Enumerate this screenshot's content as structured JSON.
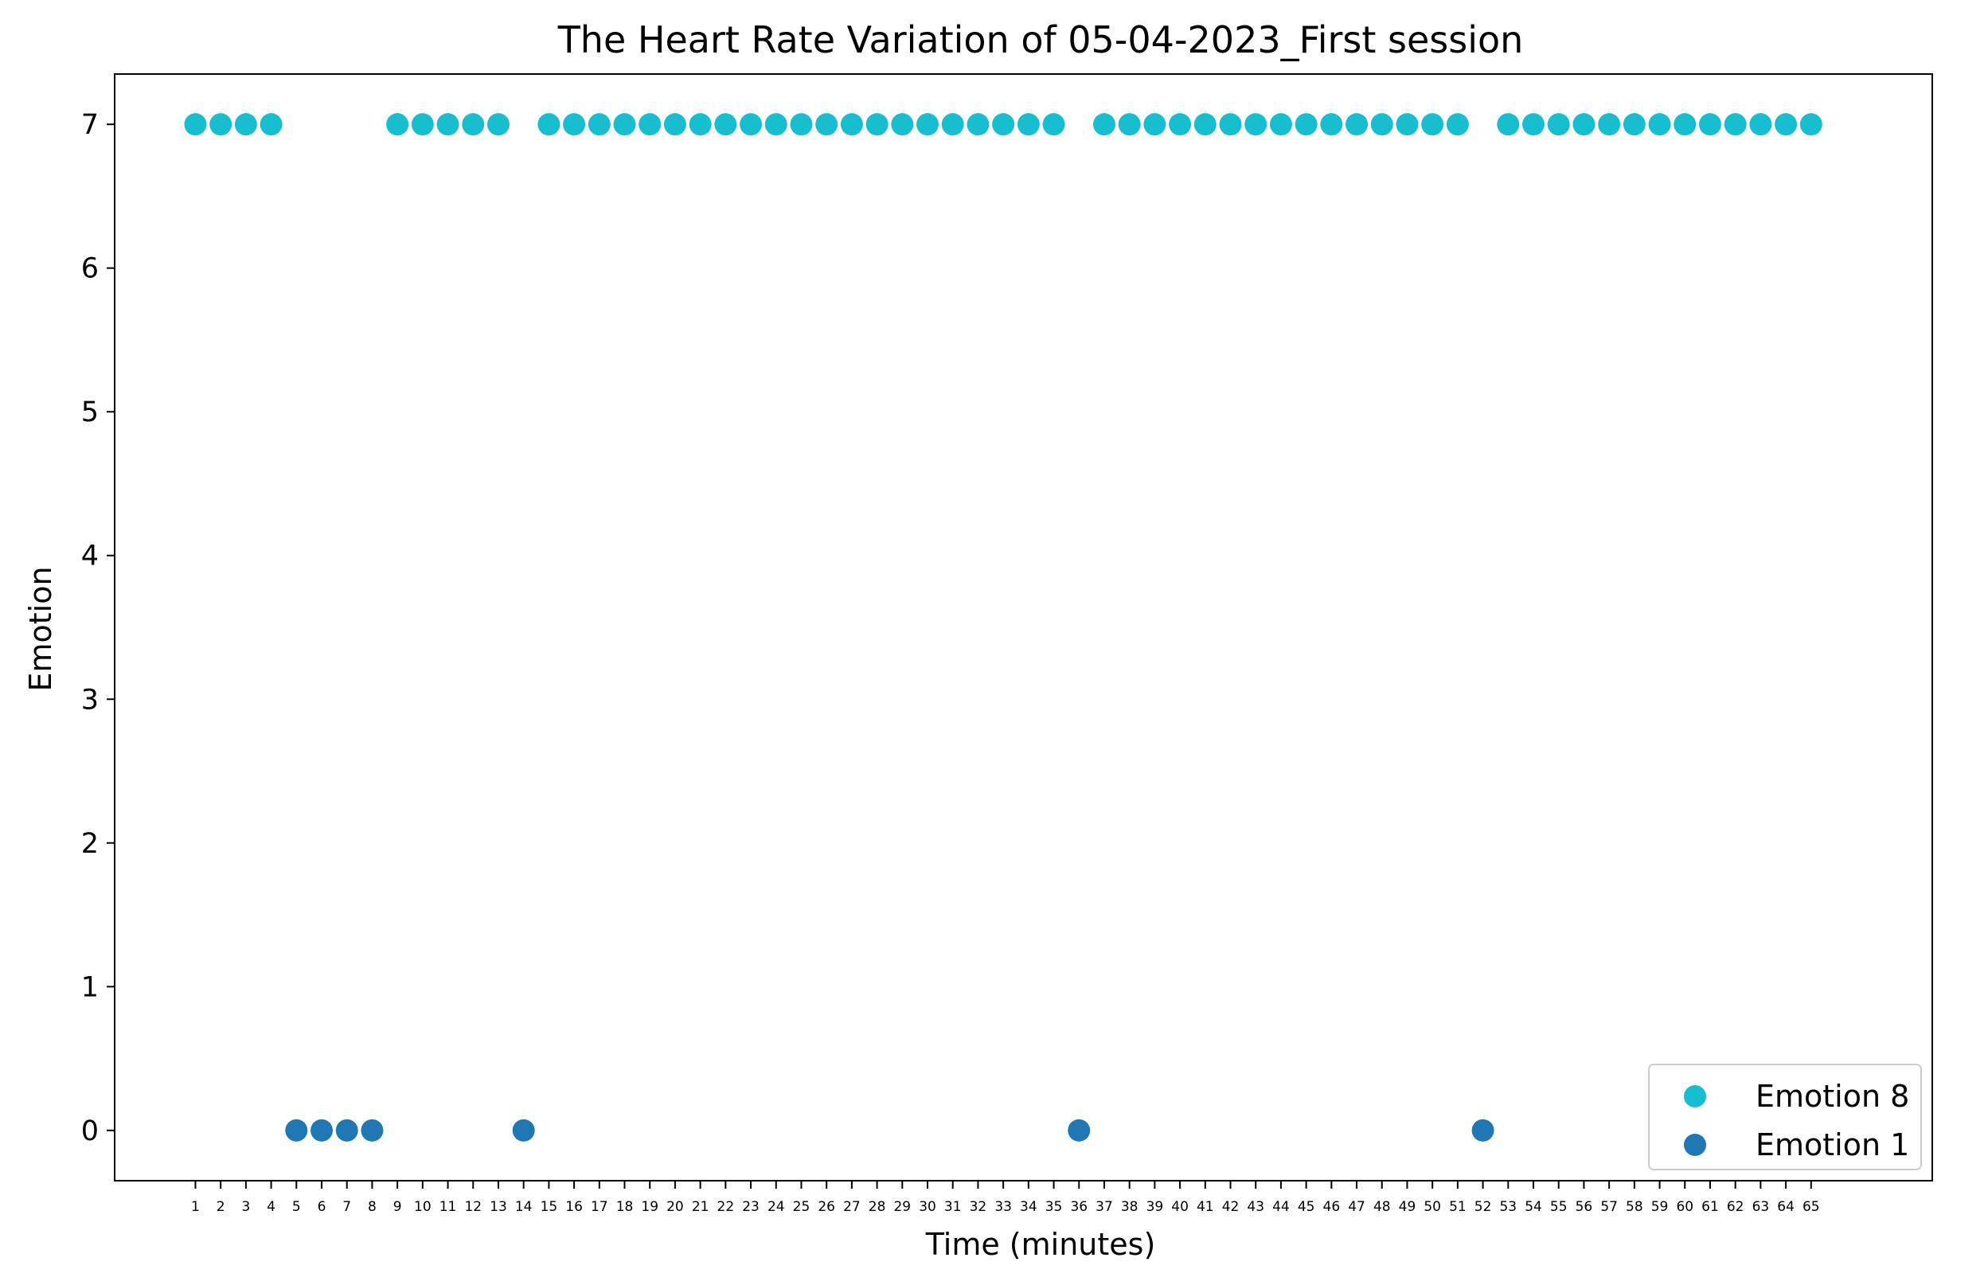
{
  "chart_data": {
    "type": "scatter",
    "title": "The Heart Rate Variation of 05-04-2023_First session",
    "xlabel": "Time (minutes)",
    "ylabel": "Emotion",
    "xlim": [
      -2.2,
      69.8
    ],
    "ylim": [
      -0.35,
      7.35
    ],
    "x_ticks": [
      1,
      2,
      3,
      4,
      5,
      6,
      7,
      8,
      9,
      10,
      11,
      12,
      13,
      14,
      15,
      16,
      17,
      18,
      19,
      20,
      21,
      22,
      23,
      24,
      25,
      26,
      27,
      28,
      29,
      30,
      31,
      32,
      33,
      34,
      35,
      36,
      37,
      38,
      39,
      40,
      41,
      42,
      43,
      44,
      45,
      46,
      47,
      48,
      49,
      50,
      51,
      52,
      53,
      54,
      55,
      56,
      57,
      58,
      59,
      60,
      61,
      62,
      63,
      64,
      65
    ],
    "y_ticks": [
      0,
      1,
      2,
      3,
      4,
      5,
      6,
      7
    ],
    "grid": false,
    "legend_position": "lower right",
    "series": [
      {
        "name": "Emotion 8",
        "color": "#17becf",
        "x": [
          1,
          2,
          3,
          4,
          9,
          10,
          11,
          12,
          13,
          15,
          16,
          17,
          18,
          19,
          20,
          21,
          22,
          23,
          24,
          25,
          26,
          27,
          28,
          29,
          30,
          31,
          32,
          33,
          34,
          35,
          37,
          38,
          39,
          40,
          41,
          42,
          43,
          44,
          45,
          46,
          47,
          48,
          49,
          50,
          51,
          53,
          54,
          55,
          56,
          57,
          58,
          59,
          60,
          61,
          62,
          63,
          64,
          65
        ],
        "y": [
          7,
          7,
          7,
          7,
          7,
          7,
          7,
          7,
          7,
          7,
          7,
          7,
          7,
          7,
          7,
          7,
          7,
          7,
          7,
          7,
          7,
          7,
          7,
          7,
          7,
          7,
          7,
          7,
          7,
          7,
          7,
          7,
          7,
          7,
          7,
          7,
          7,
          7,
          7,
          7,
          7,
          7,
          7,
          7,
          7,
          7,
          7,
          7,
          7,
          7,
          7,
          7,
          7,
          7,
          7,
          7,
          7,
          7
        ]
      },
      {
        "name": "Emotion 1",
        "color": "#1f77b4",
        "x": [
          5,
          6,
          7,
          8,
          14,
          36,
          52
        ],
        "y": [
          0,
          0,
          0,
          0,
          0,
          0,
          0
        ]
      }
    ]
  }
}
